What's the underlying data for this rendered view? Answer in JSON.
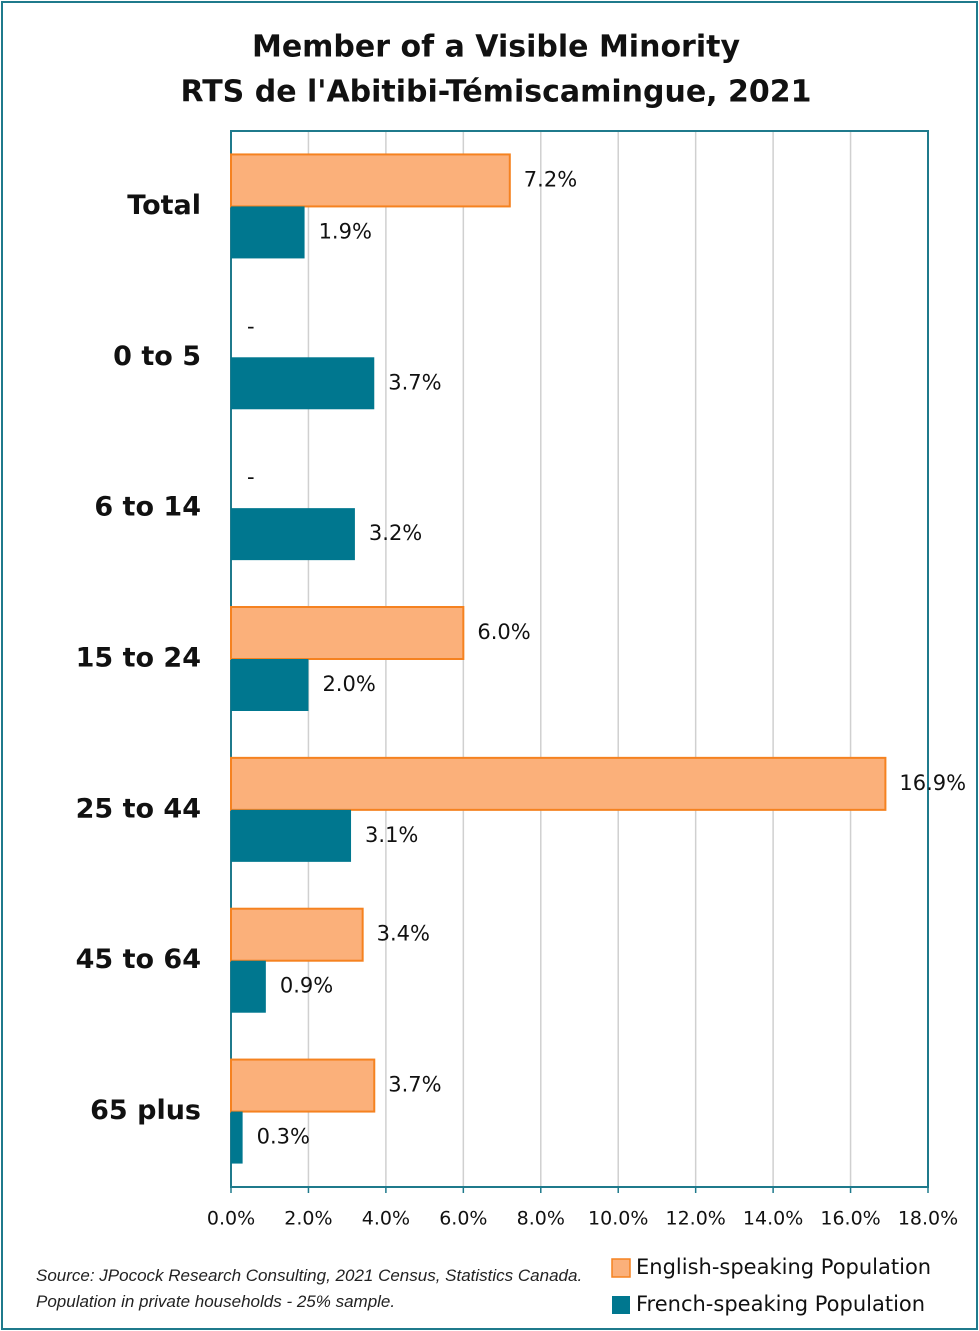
{
  "chart_data": {
    "type": "hbar",
    "title": [
      "Member of a Visible Minority",
      "RTS de l'Abitibi-Témiscamingue, 2021"
    ],
    "categories": [
      "Total",
      "0 to 5",
      "6 to 14",
      "15 to 24",
      "25 to 44",
      "45 to 64",
      "65 plus"
    ],
    "series": [
      {
        "name": "English-speaking Population",
        "color": "#fbb07a",
        "edge": "#f58220",
        "values": [
          7.2,
          null,
          null,
          6.0,
          16.9,
          3.4,
          3.7
        ],
        "value_labels": [
          "7.2%",
          "-",
          "-",
          "6.0%",
          "16.9%",
          "3.4%",
          "3.7%"
        ]
      },
      {
        "name": "French-speaking Population",
        "color": "#00778f",
        "values": [
          1.9,
          3.7,
          3.2,
          2.0,
          3.1,
          0.9,
          0.3
        ],
        "value_labels": [
          "1.9%",
          "3.7%",
          "3.2%",
          "2.0%",
          "3.1%",
          "0.9%",
          "0.3%"
        ]
      }
    ],
    "xlim": [
      0,
      18
    ],
    "xticks": [
      {
        "value": 0,
        "label": "0.0%"
      },
      {
        "value": 2,
        "label": "2.0%"
      },
      {
        "value": 4,
        "label": "4.0%"
      },
      {
        "value": 6,
        "label": "6.0%"
      },
      {
        "value": 8,
        "label": "8.0%"
      },
      {
        "value": 10,
        "label": "10.0%"
      },
      {
        "value": 12,
        "label": "12.0%"
      },
      {
        "value": 14,
        "label": "14.0%"
      },
      {
        "value": 16,
        "label": "16.0%"
      },
      {
        "value": 18,
        "label": "18.0%"
      }
    ],
    "grid": true,
    "source": "Source: JPocock Research Consulting, 2021 Census, Statistics Canada. Population in private households - 25% sample."
  }
}
